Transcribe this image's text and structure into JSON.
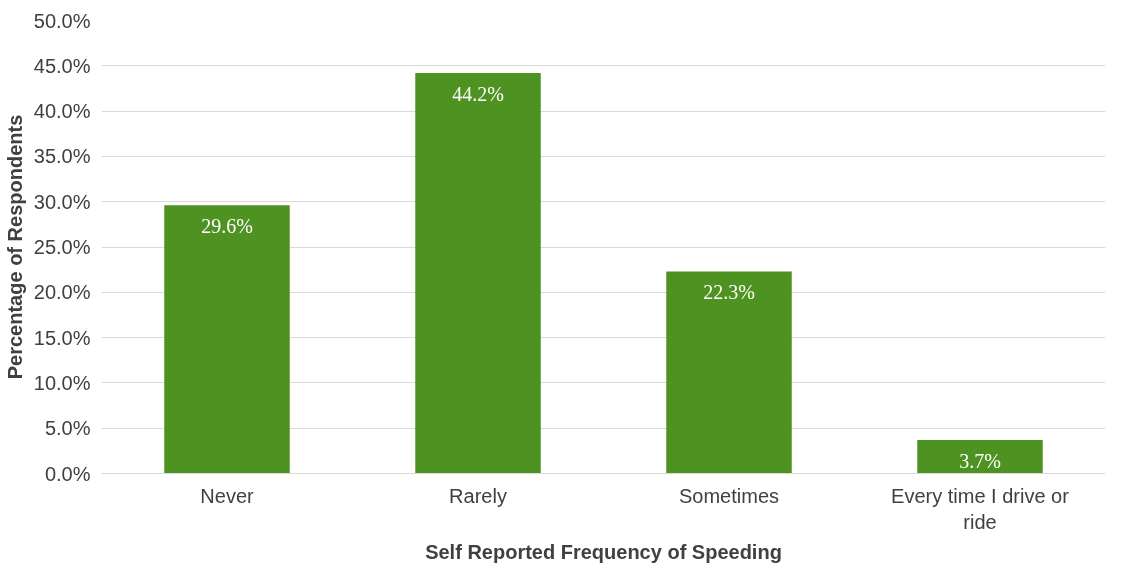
{
  "chart_data": {
    "type": "bar",
    "xlabel": "Self Reported Frequency of Speeding",
    "ylabel": "Percentage of Respondents",
    "categories": [
      "Never",
      "Rarely",
      "Sometimes",
      "Every time I drive or ride"
    ],
    "values": [
      29.6,
      44.2,
      22.3,
      3.7
    ],
    "value_labels": [
      "29.6%",
      "44.2%",
      "22.3%",
      "3.7%"
    ],
    "color": "#4e9321",
    "ylim": [
      0,
      50
    ],
    "yticks": [
      {
        "value": 0,
        "label": "0.0%"
      },
      {
        "value": 5,
        "label": "5.0%"
      },
      {
        "value": 10,
        "label": "10.0%"
      },
      {
        "value": 15,
        "label": "15.0%"
      },
      {
        "value": 20,
        "label": "20.0%"
      },
      {
        "value": 25,
        "label": "25.0%"
      },
      {
        "value": 30,
        "label": "30.0%"
      },
      {
        "value": 35,
        "label": "35.0%"
      },
      {
        "value": 40,
        "label": "40.0%"
      },
      {
        "value": 45,
        "label": "45.0%"
      },
      {
        "value": 50,
        "label": "50.0%"
      }
    ],
    "grid": "y"
  }
}
